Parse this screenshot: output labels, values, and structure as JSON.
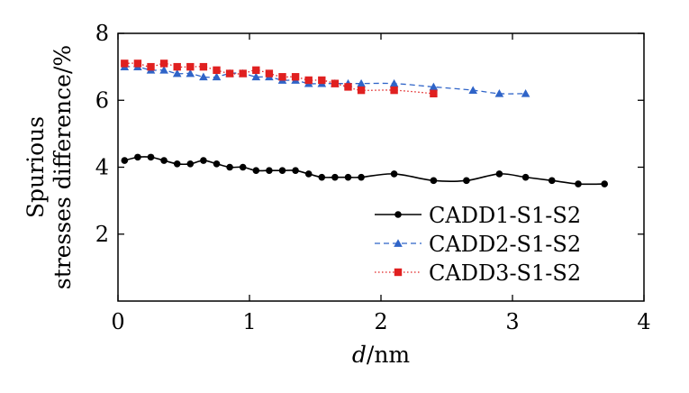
{
  "chart_data": {
    "type": "line",
    "xlabel_italic": "d",
    "xlabel_rest": "/nm",
    "ylabel_line1": "Spurious",
    "ylabel_line2": "stresses difference/%",
    "xlim": [
      0,
      4
    ],
    "ylim": [
      0,
      8
    ],
    "xticks": [
      0,
      1,
      2,
      3,
      4
    ],
    "yticks": [
      2,
      4,
      6,
      8
    ],
    "grid": false,
    "legend_position": "bottom-right",
    "series": [
      {
        "name": "CADD1-S1-S2",
        "color": "#000000",
        "marker": "circle",
        "dash": "solid",
        "x": [
          0.05,
          0.15,
          0.25,
          0.35,
          0.45,
          0.55,
          0.65,
          0.75,
          0.85,
          0.95,
          1.05,
          1.15,
          1.25,
          1.35,
          1.45,
          1.55,
          1.65,
          1.75,
          1.85,
          2.1,
          2.4,
          2.65,
          2.9,
          3.1,
          3.3,
          3.5,
          3.7
        ],
        "values": [
          4.2,
          4.3,
          4.3,
          4.2,
          4.1,
          4.1,
          4.2,
          4.1,
          4.0,
          4.0,
          3.9,
          3.9,
          3.9,
          3.9,
          3.8,
          3.7,
          3.7,
          3.7,
          3.7,
          3.8,
          3.6,
          3.6,
          3.8,
          3.7,
          3.6,
          3.5,
          3.5
        ]
      },
      {
        "name": "CADD2-S1-S2",
        "color": "#2f64c8",
        "marker": "triangle",
        "dash": "dashed",
        "x": [
          0.05,
          0.15,
          0.25,
          0.35,
          0.45,
          0.55,
          0.65,
          0.75,
          0.85,
          0.95,
          1.05,
          1.15,
          1.25,
          1.35,
          1.45,
          1.55,
          1.65,
          1.75,
          1.85,
          2.1,
          2.4,
          2.7,
          2.9,
          3.1
        ],
        "values": [
          7.0,
          7.0,
          6.9,
          6.9,
          6.8,
          6.8,
          6.7,
          6.7,
          6.8,
          6.8,
          6.7,
          6.7,
          6.6,
          6.6,
          6.5,
          6.5,
          6.5,
          6.5,
          6.5,
          6.5,
          6.4,
          6.3,
          6.2,
          6.2
        ]
      },
      {
        "name": "CADD3-S1-S2",
        "color": "#e02020",
        "marker": "square",
        "dash": "dotted",
        "x": [
          0.05,
          0.15,
          0.25,
          0.35,
          0.45,
          0.55,
          0.65,
          0.75,
          0.85,
          0.95,
          1.05,
          1.15,
          1.25,
          1.35,
          1.45,
          1.55,
          1.65,
          1.75,
          1.85,
          2.1,
          2.4
        ],
        "values": [
          7.1,
          7.1,
          7.0,
          7.1,
          7.0,
          7.0,
          7.0,
          6.9,
          6.8,
          6.8,
          6.9,
          6.8,
          6.7,
          6.7,
          6.6,
          6.6,
          6.5,
          6.4,
          6.3,
          6.3,
          6.2
        ]
      }
    ]
  }
}
